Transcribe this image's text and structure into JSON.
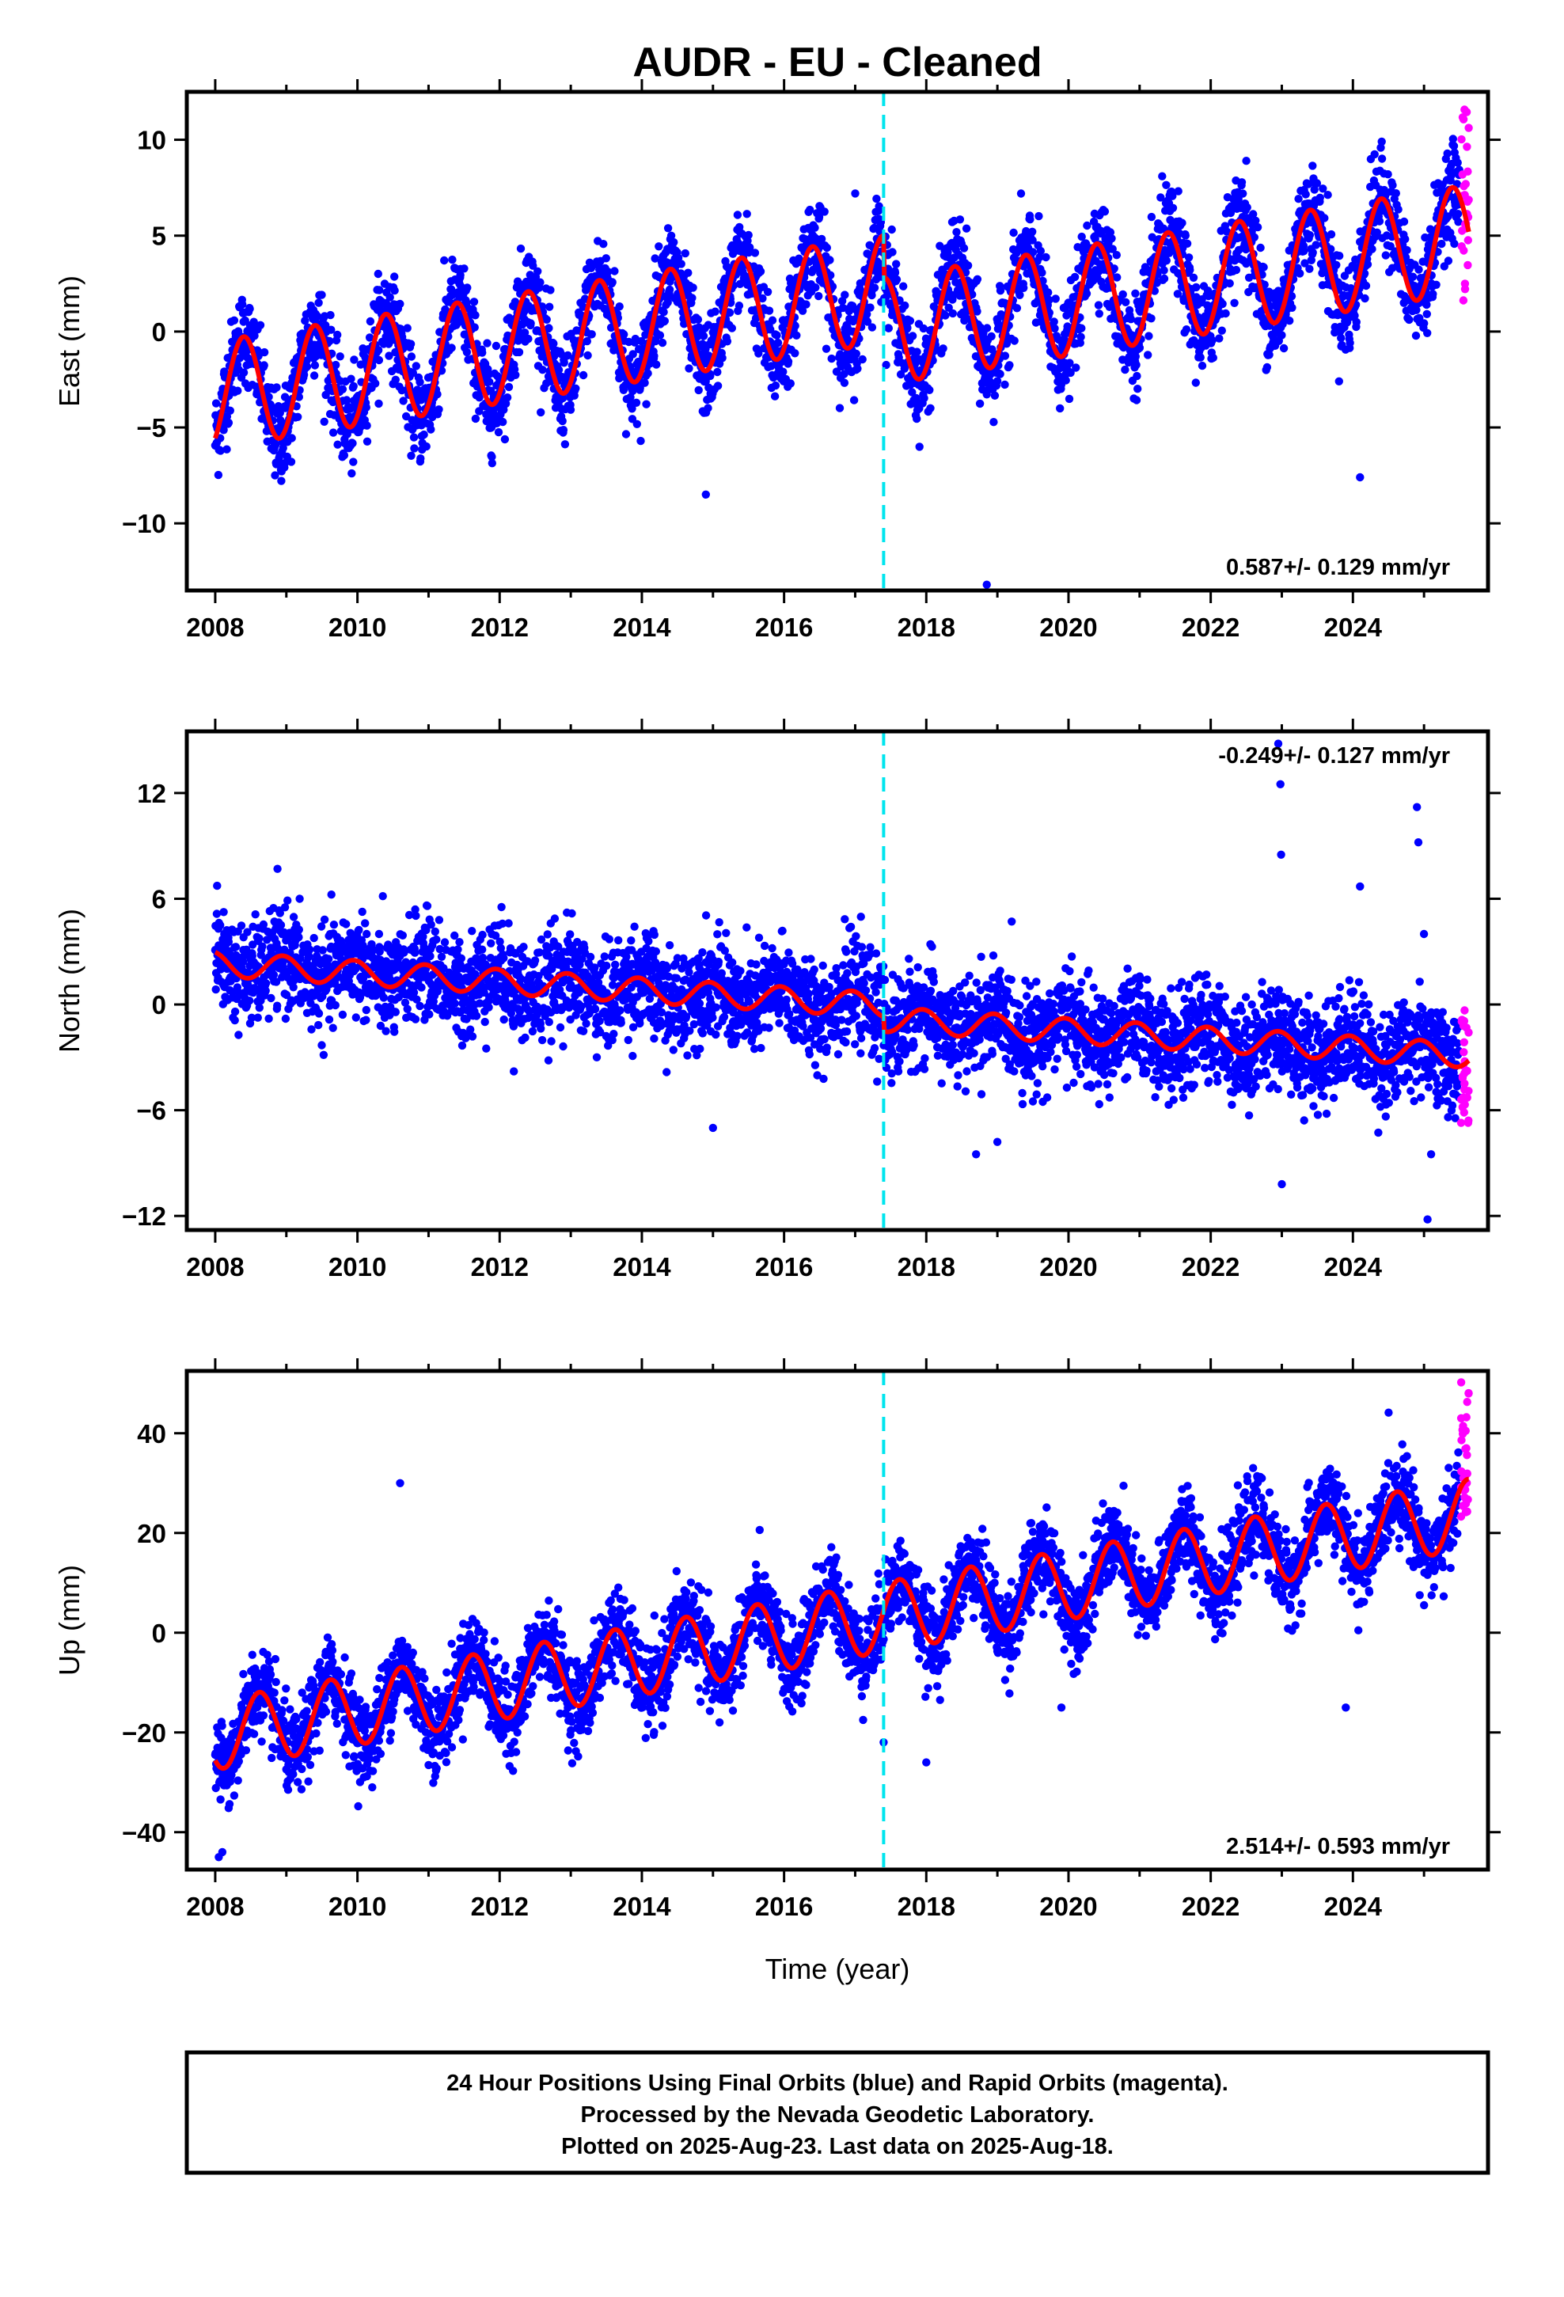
{
  "title": "AUDR  - EU - Cleaned",
  "xlabel": "Time (year)",
  "colors": {
    "final": "#0000ff",
    "rapid": "#ff00ff",
    "fit": "#ff0000",
    "break": "#00e5ee"
  },
  "footer": {
    "line1": "24 Hour Positions Using Final Orbits (blue) and Rapid Orbits (magenta).",
    "line2": "Processed by the Nevada Geodetic Laboratory.",
    "line3": "Plotted on 2025-Aug-23. Last data on 2025-Aug-18."
  },
  "chart_data": [
    {
      "type": "scatter",
      "ylabel": "East (mm)",
      "rate_label": "0.587+/- 0.129 mm/yr",
      "xlim": [
        2007.6,
        2025.9
      ],
      "ylim": [
        -13.5,
        12.5
      ],
      "xticks": [
        2008,
        2010,
        2012,
        2014,
        2016,
        2018,
        2020,
        2022,
        2024
      ],
      "yticks": [
        -10,
        -5,
        0,
        5,
        10
      ],
      "break_year": 2017.4,
      "first_epoch": 2008.0,
      "last_final_epoch": 2025.5,
      "last_epoch": 2025.63,
      "trend_at_2008_mm": -3.3,
      "rate_mm_per_yr": 0.587,
      "annual_amplitude_mm": 2.8,
      "annual_peak_fraction_of_year": 0.4,
      "scatter_sd_mm": 1.2,
      "step_at_break_mm": -2.2,
      "rapid_orbit_range_mm": [
        0.5,
        11.8
      ],
      "outliers": [
        [
          2018.85,
          -13.2
        ],
        [
          2024.1,
          -7.6
        ],
        [
          2014.9,
          -8.5
        ],
        [
          2017.0,
          7.2
        ],
        [
          2022.5,
          8.9
        ]
      ]
    },
    {
      "type": "scatter",
      "ylabel": "North (mm)",
      "rate_label": "-0.249+/- 0.127 mm/yr",
      "xlim": [
        2007.6,
        2025.9
      ],
      "ylim": [
        -12.8,
        15.5
      ],
      "xticks": [
        2008,
        2010,
        2012,
        2014,
        2016,
        2018,
        2020,
        2022,
        2024
      ],
      "yticks": [
        -12,
        -6,
        0,
        6,
        12
      ],
      "break_year": 2017.4,
      "first_epoch": 2008.0,
      "last_final_epoch": 2025.5,
      "last_epoch": 2025.63,
      "trend_at_2008_mm": 2.3,
      "rate_mm_per_yr": -0.249,
      "annual_amplitude_mm": 0.7,
      "annual_peak_fraction_of_year": 0.95,
      "scatter_sd_mm": 1.4,
      "step_at_break_mm": -0.8,
      "rapid_orbit_range_mm": [
        -6.8,
        0.2
      ],
      "outliers": [
        [
          2022.95,
          14.8
        ],
        [
          2022.98,
          12.5
        ],
        [
          2022.99,
          8.5
        ],
        [
          2024.9,
          11.2
        ],
        [
          2024.92,
          9.2
        ],
        [
          2025.0,
          4.0
        ],
        [
          2015.0,
          -7.0
        ],
        [
          2018.7,
          -8.5
        ],
        [
          2019.0,
          -7.8
        ],
        [
          2023.0,
          -10.2
        ],
        [
          2025.05,
          -12.2
        ],
        [
          2024.1,
          6.7
        ],
        [
          2012.2,
          -3.8
        ],
        [
          2025.1,
          -8.5
        ]
      ]
    },
    {
      "type": "scatter",
      "ylabel": "Up (mm)",
      "rate_label": "2.514+/- 0.593 mm/yr",
      "xlim": [
        2007.6,
        2025.9
      ],
      "ylim": [
        -47.5,
        52.5
      ],
      "xticks": [
        2008,
        2010,
        2012,
        2014,
        2016,
        2018,
        2020,
        2022,
        2024
      ],
      "yticks": [
        -40,
        -20,
        0,
        20,
        40
      ],
      "break_year": 2017.4,
      "first_epoch": 2008.0,
      "last_final_epoch": 2025.5,
      "last_epoch": 2025.63,
      "trend_at_2008_mm": -20.5,
      "rate_mm_per_yr": 2.514,
      "annual_amplitude_mm": 7.0,
      "annual_peak_fraction_of_year": 0.62,
      "scatter_sd_mm": 4.2,
      "step_at_break_mm": 0.0,
      "rapid_orbit_range_mm": [
        21.0,
        51.0
      ],
      "outliers": [
        [
          2010.6,
          30.0
        ],
        [
          2017.4,
          -22.0
        ],
        [
          2018.0,
          -26.0
        ],
        [
          2023.9,
          -15.0
        ],
        [
          2019.9,
          -15.0
        ],
        [
          2008.05,
          -45.0
        ],
        [
          2008.1,
          -44.0
        ]
      ]
    }
  ]
}
